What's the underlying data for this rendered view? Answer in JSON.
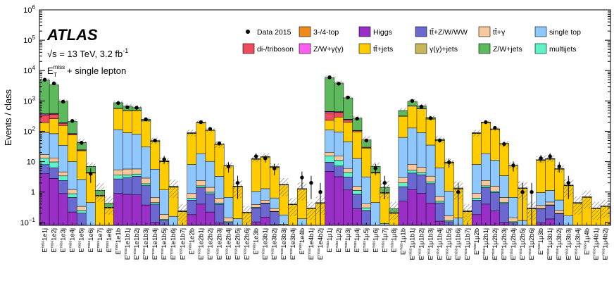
{
  "chart_data": {
    "type": "bar",
    "stacked": true,
    "yscale": "log",
    "ylim": [
      0.08,
      1000000
    ],
    "ylabel": "Events / class",
    "yticks": [
      {
        "value": 0.1,
        "base": "10",
        "exp": "−1"
      },
      {
        "value": 1,
        "base": "1",
        "exp": ""
      },
      {
        "value": 10,
        "base": "10",
        "exp": ""
      },
      {
        "value": 100,
        "base": "10",
        "exp": "2"
      },
      {
        "value": 1000,
        "base": "10",
        "exp": "3"
      },
      {
        "value": 10000,
        "base": "10",
        "exp": "4"
      },
      {
        "value": 100000,
        "base": "10",
        "exp": "5"
      },
      {
        "value": 1000000,
        "base": "10",
        "exp": "6"
      }
    ],
    "annotation": {
      "experiment": "ATLAS",
      "energy_text": "s = 13 TeV, 3.2 fb",
      "lumi_exp": "-1",
      "sqrt_symbol": "√",
      "selection_base": "E",
      "selection_sub": "T",
      "selection_sup": "miss",
      "selection_rest": "+ single lepton"
    },
    "groups": [
      {
        "lepton": "e",
        "count": 8,
        "label_mode": "full_all",
        "start": 1,
        "prefix": "1e"
      },
      {
        "lepton": "e",
        "count": 7,
        "label_mode": "e1b",
        "start": 1,
        "prefix": "1e1b"
      },
      {
        "lepton": "e",
        "count": 6,
        "label_mode": "e2b",
        "start": 1,
        "prefix": "1e2b"
      },
      {
        "lepton": "e",
        "count": 4,
        "label_mode": "e3b",
        "start": 1,
        "prefix": "1e3b"
      },
      {
        "lepton": "e",
        "count": 2,
        "label_mode": "e4b",
        "start": 1,
        "prefix": "1e4b"
      }
    ],
    "categories": [
      "1e1j",
      "1e2j",
      "1e3j",
      "1e4j",
      "1e5j",
      "1e6j",
      "1e7j",
      "1e8j",
      "1e1b",
      "1e1b1j",
      "1e1b2j",
      "1e1b3j",
      "1e1b4j",
      "1e1b5j",
      "1e1b6j",
      "1e1b7j",
      "1e2b",
      "1e2b1j",
      "1e2b2j",
      "1e2b3j",
      "1e2b4j",
      "1e2b5j",
      "1e2b6j",
      "1e3b",
      "1e3b1j",
      "1e3b2j",
      "1e3b3j",
      "1e3b4j",
      "1e4b",
      "1e4b1j",
      "1e4b2j",
      "1μ1j",
      "1μ2j",
      "1μ3j",
      "1μ4j",
      "1μ5j",
      "1μ6j",
      "1μ7j",
      "1μ8j",
      "1μ1b",
      "1μ1b1j",
      "1μ1b2j",
      "1μ1b3j",
      "1μ1b4j",
      "1μ1b5j",
      "1μ1b6j",
      "1μ1b7j",
      "1μ2b",
      "1μ2b1j",
      "1μ2b2j",
      "1μ2b3j",
      "1μ2b4j",
      "1μ2b5j",
      "1μ2b6j",
      "1μ3b",
      "1μ3b1j",
      "1μ3b2j",
      "1μ3b3j",
      "1μ3b4j",
      "1μ4b",
      "1μ4b1j",
      "1μ4b2j"
    ],
    "label_prefix_base": "E",
    "label_prefix_sub": "T",
    "label_prefix_sup": "miss",
    "totals": [
      5000,
      3500,
      1000,
      220,
      45,
      7.5,
      1.2,
      0.45,
      900,
      700,
      620,
      250,
      50,
      11,
      1.6,
      0.25,
      90,
      200,
      110,
      38,
      7.5,
      1.6,
      0.22,
      13,
      15,
      7,
      1.8,
      0.4,
      1.3,
      0.3,
      0.45,
      6000,
      4000,
      1300,
      280,
      55,
      7.5,
      1.5,
      0.3,
      500,
      1000,
      700,
      290,
      55,
      10,
      1.4,
      0.25,
      90,
      200,
      120,
      40,
      7.5,
      1.4,
      0.3,
      12,
      13,
      6,
      1.7,
      0.45,
      0.7,
      0.3,
      0.35
    ],
    "data": [
      5000,
      3800,
      950,
      220,
      42,
      4,
      null,
      null,
      850,
      620,
      600,
      250,
      50,
      12,
      null,
      null,
      null,
      200,
      120,
      40,
      7,
      2,
      null,
      15,
      13,
      6,
      null,
      null,
      3,
      2,
      1,
      6000,
      3700,
      1300,
      260,
      50,
      6,
      2,
      null,
      null,
      1000,
      650,
      270,
      50,
      9.5,
      1,
      null,
      null,
      200,
      130,
      38,
      7.5,
      1,
      1,
      13,
      15,
      7,
      2,
      null,
      null,
      null,
      null
    ],
    "fractions": [
      {
        "name": "Higgs",
        "values": [
          0.0008,
          0.0008,
          0.0009,
          0.001,
          0.0015,
          0.002,
          0.002,
          0.002,
          0.001,
          0.0012,
          0.0013,
          0.0015,
          0.002,
          0.0025,
          0.003,
          0.003,
          0.002,
          0.002,
          0.002,
          0.0025,
          0.003,
          0.0035,
          0.004,
          0.008,
          0.01,
          0.012,
          0.014,
          0.015,
          0.02,
          0.02,
          0.02,
          0.0008,
          0.0008,
          0.0009,
          0.001,
          0.0015,
          0.002,
          0.002,
          0.002,
          0.001,
          0.0012,
          0.0013,
          0.0015,
          0.002,
          0.0025,
          0.003,
          0.003,
          0.002,
          0.002,
          0.002,
          0.0025,
          0.003,
          0.0035,
          0.004,
          0.008,
          0.01,
          0.012,
          0.014,
          0.015,
          0.02,
          0.02,
          0.02
        ]
      },
      {
        "name": "ttZWWW",
        "values": [
          0.0008,
          0.001,
          0.0015,
          0.002,
          0.003,
          0.004,
          0.005,
          0.005,
          0.002,
          0.003,
          0.004,
          0.005,
          0.006,
          0.008,
          0.01,
          0.01,
          0.004,
          0.005,
          0.006,
          0.008,
          0.01,
          0.012,
          0.015,
          0.015,
          0.018,
          0.02,
          0.025,
          0.03,
          0.03,
          0.03,
          0.03,
          0.0008,
          0.001,
          0.0015,
          0.002,
          0.003,
          0.004,
          0.005,
          0.005,
          0.002,
          0.003,
          0.004,
          0.005,
          0.006,
          0.008,
          0.01,
          0.01,
          0.004,
          0.005,
          0.006,
          0.008,
          0.01,
          0.012,
          0.015,
          0.015,
          0.018,
          0.02,
          0.025,
          0.03,
          0.03,
          0.03,
          0.03
        ]
      },
      {
        "name": "multijets",
        "values": [
          0.001,
          0.001,
          0.001,
          0.001,
          0.001,
          0.001,
          0.001,
          0.001,
          0.001,
          0.001,
          0.001,
          0.001,
          0.001,
          0.001,
          0.001,
          0.001,
          0.001,
          0.001,
          0.001,
          0.001,
          0.001,
          0.001,
          0.001,
          0.001,
          0.001,
          0.001,
          0.001,
          0.001,
          0.001,
          0.001,
          0.001,
          0.001,
          0.001,
          0.001,
          0.001,
          0.001,
          0.001,
          0.001,
          0.001,
          0.001,
          0.001,
          0.001,
          0.001,
          0.001,
          0.001,
          0.001,
          0.001,
          0.001,
          0.001,
          0.001,
          0.001,
          0.001,
          0.001,
          0.001,
          0.001,
          0.001,
          0.001,
          0.001,
          0.001,
          0.001,
          0.001,
          0.001
        ]
      },
      {
        "name": "ttgamma",
        "values": [
          0.0008,
          0.001,
          0.0012,
          0.0015,
          0.002,
          0.003,
          0.003,
          0.003,
          0.002,
          0.003,
          0.003,
          0.004,
          0.004,
          0.005,
          0.005,
          0.005,
          0.003,
          0.004,
          0.004,
          0.005,
          0.005,
          0.006,
          0.006,
          0.006,
          0.007,
          0.008,
          0.008,
          0.008,
          0.01,
          0.01,
          0.01,
          0.0008,
          0.001,
          0.0012,
          0.0015,
          0.002,
          0.003,
          0.003,
          0.003,
          0.002,
          0.003,
          0.003,
          0.004,
          0.004,
          0.005,
          0.005,
          0.005,
          0.003,
          0.004,
          0.004,
          0.005,
          0.005,
          0.006,
          0.006,
          0.006,
          0.007,
          0.008,
          0.008,
          0.008,
          0.01,
          0.01,
          0.01
        ]
      },
      {
        "name": "singletop",
        "values": [
          0.015,
          0.02,
          0.03,
          0.04,
          0.05,
          0.05,
          0.05,
          0.05,
          0.12,
          0.12,
          0.12,
          0.11,
          0.1,
          0.09,
          0.08,
          0.08,
          0.08,
          0.08,
          0.08,
          0.07,
          0.07,
          0.06,
          0.06,
          0.05,
          0.05,
          0.05,
          0.05,
          0.05,
          0.04,
          0.04,
          0.04,
          0.015,
          0.02,
          0.03,
          0.04,
          0.05,
          0.05,
          0.05,
          0.05,
          0.12,
          0.12,
          0.12,
          0.11,
          0.1,
          0.09,
          0.08,
          0.08,
          0.08,
          0.08,
          0.08,
          0.07,
          0.07,
          0.06,
          0.06,
          0.05,
          0.05,
          0.05,
          0.05,
          0.05,
          0.04,
          0.04,
          0.04
        ]
      },
      {
        "name": "ttjets",
        "values": [
          0.02,
          0.05,
          0.12,
          0.3,
          0.45,
          0.5,
          0.55,
          0.6,
          0.5,
          0.55,
          0.65,
          0.75,
          0.8,
          0.8,
          0.8,
          0.8,
          0.85,
          0.87,
          0.88,
          0.88,
          0.87,
          0.85,
          0.85,
          0.85,
          0.85,
          0.85,
          0.85,
          0.85,
          0.85,
          0.85,
          0.85,
          0.02,
          0.05,
          0.12,
          0.3,
          0.45,
          0.5,
          0.55,
          0.6,
          0.5,
          0.55,
          0.65,
          0.75,
          0.8,
          0.8,
          0.8,
          0.8,
          0.85,
          0.87,
          0.88,
          0.88,
          0.87,
          0.85,
          0.85,
          0.85,
          0.85,
          0.85,
          0.85,
          0.85,
          0.85,
          0.85,
          0.85
        ]
      },
      {
        "name": "diboson",
        "values": [
          0.03,
          0.03,
          0.03,
          0.03,
          0.03,
          0.03,
          0.03,
          0.03,
          0.01,
          0.01,
          0.01,
          0.01,
          0.01,
          0.01,
          0.01,
          0.01,
          0.005,
          0.005,
          0.005,
          0.005,
          0.005,
          0.005,
          0.005,
          0.003,
          0.003,
          0.003,
          0.003,
          0.003,
          0.003,
          0.003,
          0.003,
          0.03,
          0.03,
          0.03,
          0.03,
          0.03,
          0.03,
          0.03,
          0.03,
          0.01,
          0.01,
          0.01,
          0.01,
          0.01,
          0.01,
          0.01,
          0.01,
          0.005,
          0.005,
          0.005,
          0.005,
          0.005,
          0.005,
          0.005,
          0.003,
          0.003,
          0.003,
          0.003,
          0.003,
          0.003,
          0.003,
          0.003
        ]
      },
      {
        "name": "Wgamma",
        "values": [
          0.005,
          0.005,
          0.005,
          0.005,
          0.005,
          0.005,
          0.005,
          0.005,
          0.002,
          0.002,
          0.002,
          0.002,
          0.002,
          0.002,
          0.002,
          0.002,
          0.001,
          0.001,
          0.001,
          0.001,
          0.001,
          0.001,
          0.001,
          0.001,
          0.001,
          0.001,
          0.001,
          0.001,
          0.001,
          0.001,
          0.001,
          0.005,
          0.005,
          0.005,
          0.005,
          0.005,
          0.005,
          0.005,
          0.005,
          0.002,
          0.002,
          0.002,
          0.002,
          0.002,
          0.002,
          0.002,
          0.002,
          0.001,
          0.001,
          0.001,
          0.001,
          0.001,
          0.001,
          0.001,
          0.001,
          0.001,
          0.001,
          0.001,
          0.001,
          0.001,
          0.001,
          0.001
        ]
      },
      {
        "name": "gammajets",
        "values": [
          0.002,
          0.002,
          0.002,
          0.002,
          0.002,
          0.002,
          0.002,
          0.002,
          0.001,
          0.001,
          0.001,
          0.001,
          0.001,
          0.001,
          0.001,
          0.001,
          0.001,
          0.001,
          0.001,
          0.001,
          0.001,
          0.001,
          0.001,
          0.001,
          0.001,
          0.001,
          0.001,
          0.001,
          0.001,
          0.001,
          0.001,
          0.002,
          0.002,
          0.002,
          0.002,
          0.002,
          0.002,
          0.002,
          0.002,
          0.001,
          0.001,
          0.001,
          0.001,
          0.001,
          0.001,
          0.001,
          0.001,
          0.001,
          0.001,
          0.001,
          0.001,
          0.001,
          0.001,
          0.001,
          0.001,
          0.001,
          0.001,
          0.001,
          0.001,
          0.001,
          0.001,
          0.001
        ]
      },
      {
        "name": "ZWjets",
        "values": [
          0.9,
          0.86,
          0.78,
          0.58,
          0.4,
          0.33,
          0.3,
          0.25,
          0.33,
          0.28,
          0.18,
          0.1,
          0.06,
          0.05,
          0.05,
          0.05,
          0.05,
          0.03,
          0.02,
          0.02,
          0.02,
          0.03,
          0.03,
          0.03,
          0.03,
          0.03,
          0.03,
          0.03,
          0.03,
          0.03,
          0.03,
          0.9,
          0.86,
          0.78,
          0.58,
          0.4,
          0.33,
          0.3,
          0.25,
          0.33,
          0.28,
          0.18,
          0.1,
          0.06,
          0.05,
          0.05,
          0.05,
          0.05,
          0.03,
          0.02,
          0.02,
          0.02,
          0.03,
          0.03,
          0.03,
          0.03,
          0.03,
          0.03,
          0.03,
          0.03,
          0.03,
          0.03
        ]
      },
      {
        "name": "fourtop",
        "values": [
          0.0002,
          0.0002,
          0.0002,
          0.0002,
          0.0005,
          0.001,
          0.001,
          0.001,
          0.0002,
          0.0002,
          0.0003,
          0.0005,
          0.001,
          0.002,
          0.003,
          0.003,
          0.0005,
          0.0005,
          0.001,
          0.002,
          0.004,
          0.006,
          0.008,
          0.005,
          0.006,
          0.008,
          0.01,
          0.012,
          0.01,
          0.01,
          0.01,
          0.0002,
          0.0002,
          0.0002,
          0.0002,
          0.0005,
          0.001,
          0.001,
          0.001,
          0.0002,
          0.0002,
          0.0003,
          0.0005,
          0.001,
          0.002,
          0.003,
          0.003,
          0.0005,
          0.0005,
          0.001,
          0.002,
          0.004,
          0.006,
          0.008,
          0.005,
          0.006,
          0.008,
          0.01,
          0.012,
          0.01,
          0.01,
          0.01
        ]
      }
    ],
    "stack_order": [
      "Higgs",
      "ttZWWW",
      "multijets",
      "ttgamma",
      "singletop",
      "ttjets",
      "diboson",
      "Wgamma",
      "gammajets",
      "ZWjets",
      "fourtop"
    ],
    "legend": [
      {
        "key": "Data2015",
        "label": "Data 2015",
        "kind": "marker",
        "color": "#000000"
      },
      {
        "key": "fourtop",
        "label": "3-/4-top",
        "kind": "box",
        "color": "#ef8a17"
      },
      {
        "key": "Higgs",
        "label": "Higgs",
        "kind": "box",
        "color": "#9a2fc7"
      },
      {
        "key": "ttZWWW",
        "label": "tt̄+Z/W/WW",
        "kind": "box",
        "color": "#6b68d1"
      },
      {
        "key": "ttgamma",
        "label": "tt̄+γ",
        "kind": "box",
        "color": "#f7c89b"
      },
      {
        "key": "singletop",
        "label": "single top",
        "kind": "box",
        "color": "#8fc8ff"
      },
      {
        "key": "diboson",
        "label": "di-/triboson",
        "kind": "box",
        "color": "#ee4b5e"
      },
      {
        "key": "Wgamma",
        "label": "Z/W+γ(γ)",
        "kind": "box",
        "color": "#ff5ef0"
      },
      {
        "key": "ttjets",
        "label": "tt̄+jets",
        "kind": "box",
        "color": "#ffcc00"
      },
      {
        "key": "gammajets",
        "label": "γ(γ)+jets",
        "kind": "box",
        "color": "#c8b75a"
      },
      {
        "key": "ZWjets",
        "label": "Z/W+jets",
        "kind": "box",
        "color": "#5cba5c"
      },
      {
        "key": "multijets",
        "label": "multijets",
        "kind": "box",
        "color": "#5ef2c8"
      }
    ]
  }
}
